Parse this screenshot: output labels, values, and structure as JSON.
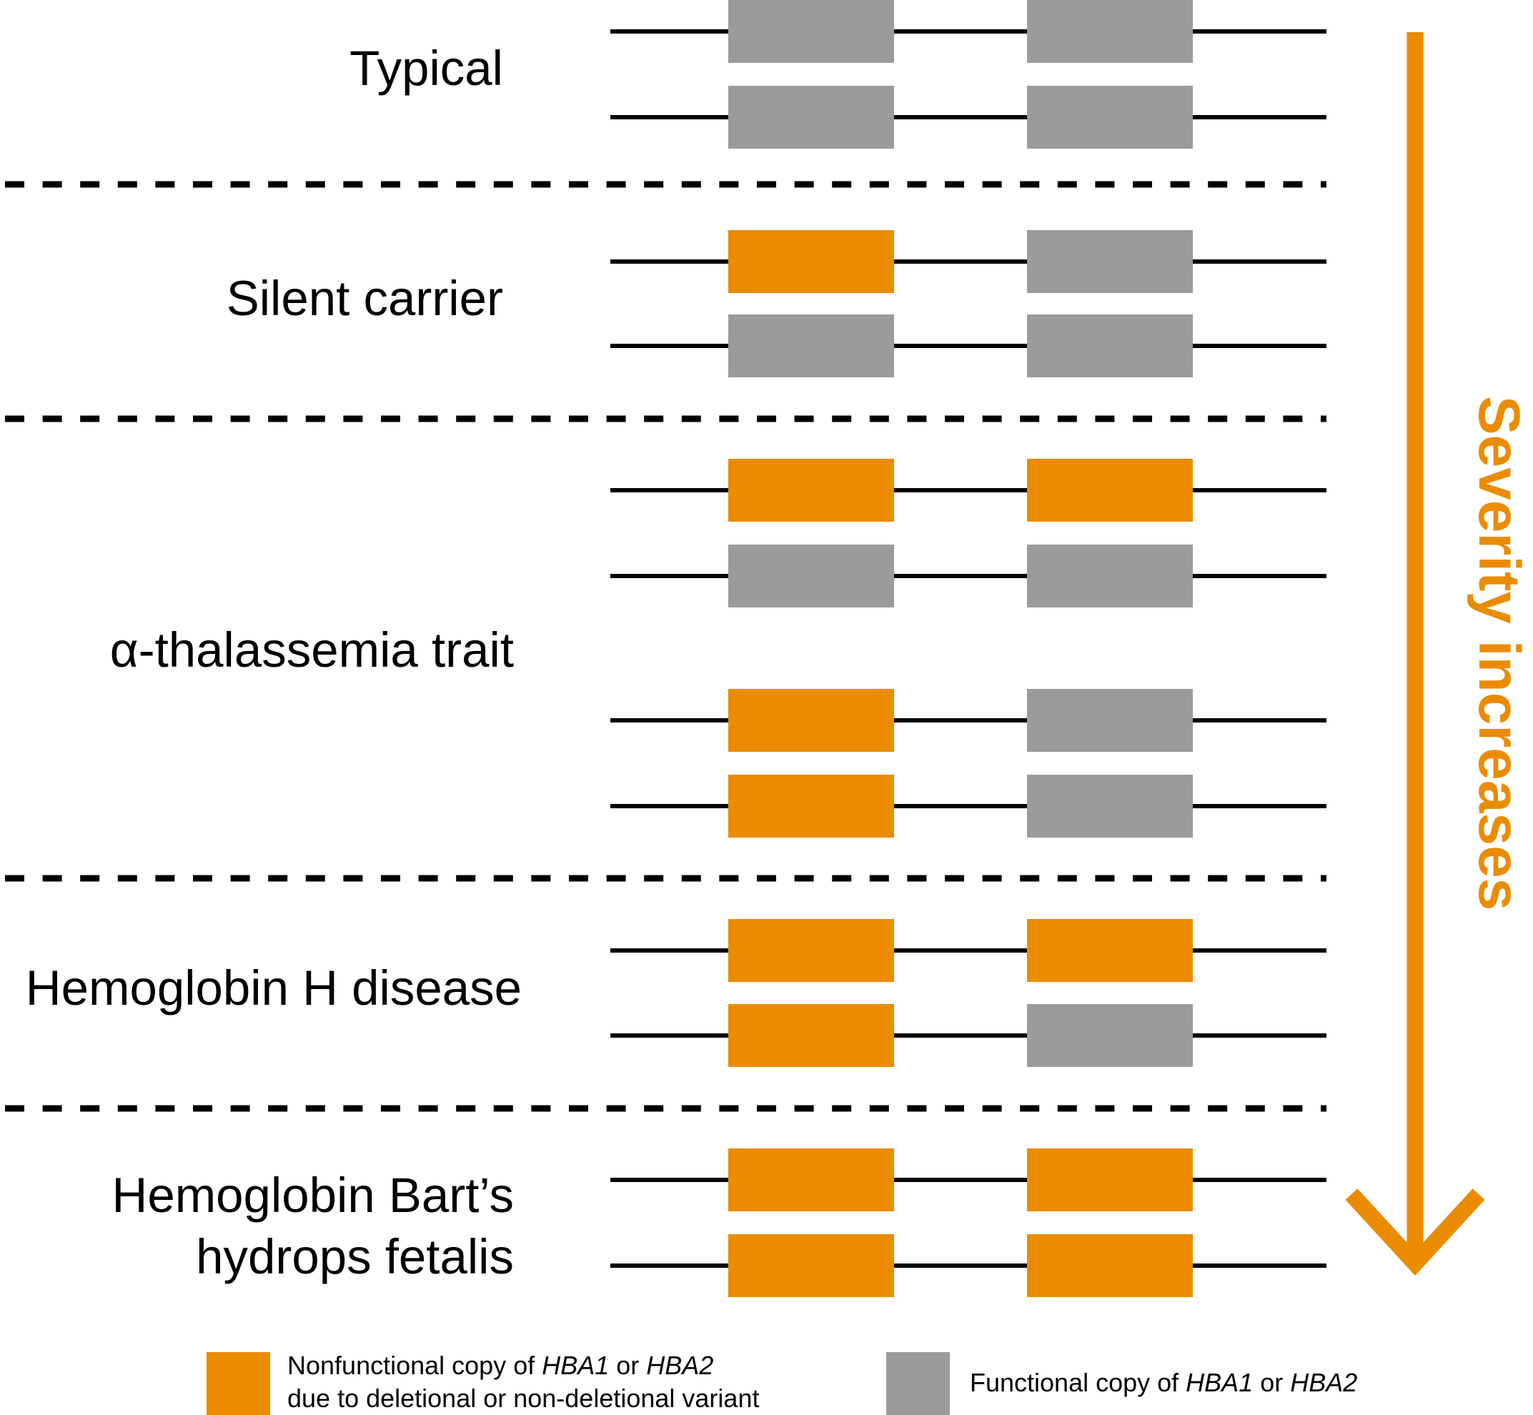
{
  "colors": {
    "nonfunctional": "#EB8C00",
    "functional": "#9B9B9B",
    "line": "#000000",
    "arrow": "#EB8C00"
  },
  "groups": [
    {
      "label": "Typical",
      "chromosomes": [
        [
          "functional",
          "functional"
        ],
        [
          "functional",
          "functional"
        ]
      ]
    },
    {
      "label": "Silent carrier",
      "chromosomes": [
        [
          "nonfunctional",
          "functional"
        ],
        [
          "functional",
          "functional"
        ]
      ]
    },
    {
      "label": "α-thalassemia trait",
      "chromosomes": [
        [
          "nonfunctional",
          "nonfunctional"
        ],
        [
          "functional",
          "functional"
        ],
        [
          "nonfunctional",
          "functional"
        ],
        [
          "nonfunctional",
          "functional"
        ]
      ]
    },
    {
      "label": "Hemoglobin H disease",
      "chromosomes": [
        [
          "nonfunctional",
          "nonfunctional"
        ],
        [
          "nonfunctional",
          "functional"
        ]
      ]
    },
    {
      "label_line1": "Hemoglobin Bart’s",
      "label_line2": "hydrops fetalis",
      "chromosomes": [
        [
          "nonfunctional",
          "nonfunctional"
        ],
        [
          "nonfunctional",
          "nonfunctional"
        ]
      ]
    }
  ],
  "severity_arrow": {
    "label": "Severity increases",
    "direction": "down"
  },
  "legend": {
    "nonfunctional": {
      "prefix": "Nonfunctional copy of ",
      "gene1": "HBA1",
      "or": " or ",
      "gene2": "HBA2",
      "line2": "due to deletional or non-deletional variant"
    },
    "functional": {
      "prefix": "Functional copy of ",
      "gene1": "HBA1",
      "or": " or ",
      "gene2": "HBA2"
    }
  }
}
